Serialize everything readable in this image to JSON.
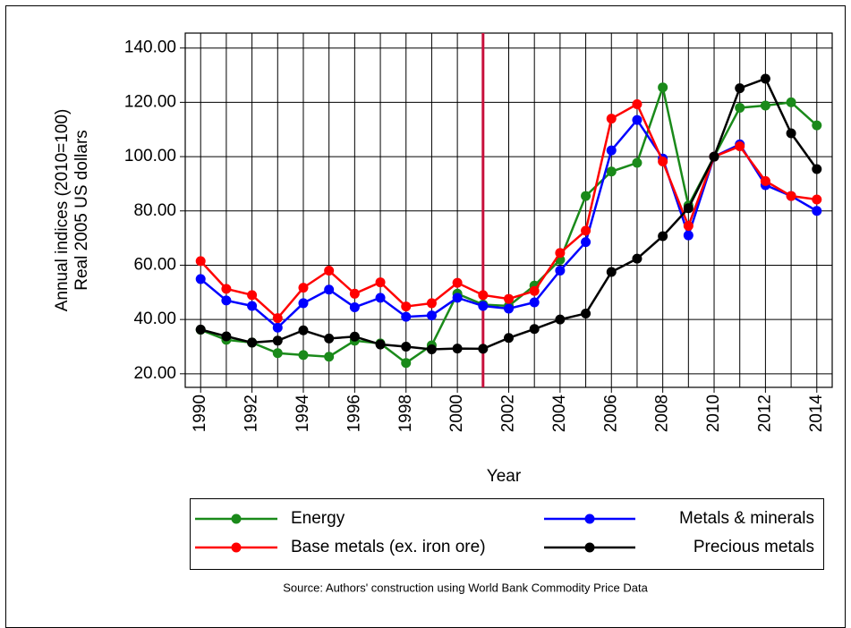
{
  "chart_data": {
    "type": "line",
    "x_label": "Year",
    "y_label": [
      "Annual indices (2010=100)",
      "Real 2005 US dollars"
    ],
    "source": "Source: Authors' construction using World Bank Commodity Price Data",
    "x": [
      1990,
      1991,
      1992,
      1993,
      1994,
      1995,
      1996,
      1997,
      1998,
      1999,
      2000,
      2001,
      2002,
      2003,
      2004,
      2005,
      2006,
      2007,
      2008,
      2009,
      2010,
      2011,
      2012,
      2013,
      2014
    ],
    "xlim": [
      1989.4,
      2014.6
    ],
    "xticks": [
      1990,
      1992,
      1994,
      1996,
      1998,
      2000,
      2002,
      2004,
      2006,
      2008,
      2010,
      2012,
      2014
    ],
    "ylim": [
      15,
      145.5
    ],
    "yticks": [
      {
        "value": 20,
        "label": "20.00"
      },
      {
        "value": 40,
        "label": "40.00"
      },
      {
        "value": 60,
        "label": "60.00"
      },
      {
        "value": 80,
        "label": "80.00"
      },
      {
        "value": 100,
        "label": "100.00"
      },
      {
        "value": 120,
        "label": "120.00"
      },
      {
        "value": 140,
        "label": "140.00"
      }
    ],
    "grid": true,
    "vline": {
      "x": 2001,
      "color": "#c8103c"
    },
    "series": [
      {
        "name": "Energy",
        "color": "#1a8a1a",
        "values": [
          36.2,
          32.5,
          31.5,
          27.6,
          26.9,
          26.3,
          32.2,
          31.2,
          24,
          30.5,
          49.5,
          45.5,
          45,
          52.5,
          62,
          85.5,
          94.5,
          97.7,
          125.5,
          82,
          100,
          118,
          118.8,
          120,
          111.5
        ]
      },
      {
        "name": "Metals & minerals",
        "color": "#0000ff",
        "values": [
          54.9,
          47,
          45,
          37,
          46,
          51,
          44.5,
          48,
          41,
          41.5,
          48,
          45,
          44,
          46.3,
          58,
          68.5,
          102.3,
          113.5,
          99.3,
          71,
          100,
          104.5,
          89.5,
          85.5,
          80
        ]
      },
      {
        "name": "Base metals (ex. iron ore)",
        "color": "#ff0000",
        "values": [
          61.5,
          51.3,
          49,
          40.5,
          51.7,
          58,
          49.5,
          53.7,
          44.8,
          46,
          53.5,
          49,
          47.6,
          50.5,
          64.5,
          72.7,
          114,
          119.3,
          98.2,
          74.5,
          100,
          103.8,
          91,
          85.5,
          84.2
        ]
      },
      {
        "name": "Precious metals",
        "color": "#000000",
        "values": [
          36.3,
          33.8,
          31.5,
          32.2,
          36,
          33,
          33.7,
          30.8,
          30,
          29,
          29.3,
          29.2,
          33.2,
          36.5,
          40,
          42.2,
          57.5,
          62.4,
          70.7,
          81,
          100,
          125.2,
          128.7,
          108.6,
          95.4
        ]
      }
    ]
  }
}
